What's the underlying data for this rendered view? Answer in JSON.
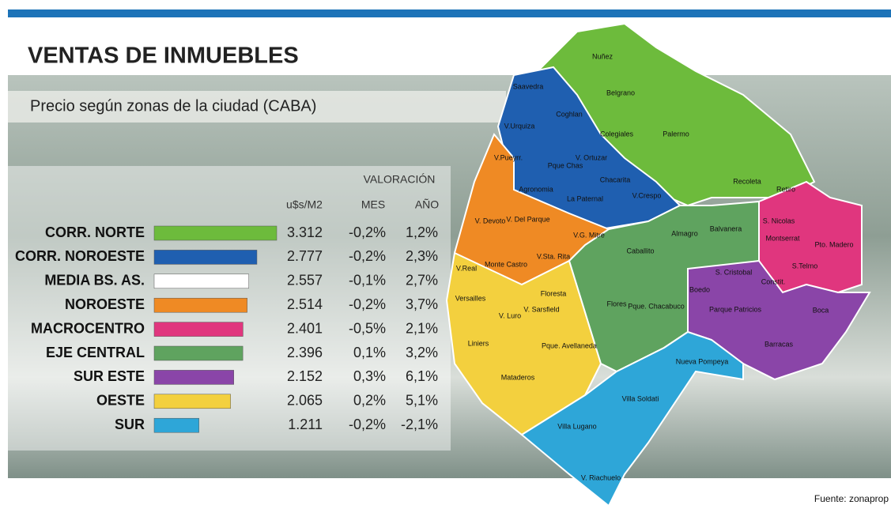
{
  "chart_data": {
    "type": "bar",
    "title": "VENTAS DE INMUEBLES",
    "subtitle": "Precio según zonas de la ciudad (CABA)",
    "headers": {
      "price": "u$s/M2",
      "group": "VALORACIÓN",
      "mes": "MES",
      "anio": "AÑO"
    },
    "categories": [
      "CORR. NORTE",
      "CORR. NOROESTE",
      "MEDIA BS. AS.",
      "NOROESTE",
      "MACROCENTRO",
      "EJE CENTRAL",
      "SUR ESTE",
      "OESTE",
      "SUR"
    ],
    "values": [
      3312,
      2777,
      2557,
      2514,
      2401,
      2396,
      2152,
      2065,
      1211
    ],
    "value_labels": [
      "3.312",
      "2.777",
      "2.557",
      "2.514",
      "2.401",
      "2.396",
      "2.152",
      "2.065",
      "1.211"
    ],
    "colors": [
      "#6dbb3c",
      "#1f5fb0",
      "#ffffff",
      "#ef8a24",
      "#e0367e",
      "#5fa35f",
      "#8a45a8",
      "#f3d03e",
      "#2ea6d8"
    ],
    "mes": {
      "values": [
        -0.2,
        -0.2,
        -0.1,
        -0.2,
        -0.5,
        0.1,
        0.3,
        0.2,
        -0.2
      ],
      "value_labels": [
        "-0,2%",
        "-0,2%",
        "-0,1%",
        "-0,2%",
        "-0,5%",
        "0,1%",
        "0,3%",
        "0,2%",
        "-0,2%"
      ]
    },
    "anio": {
      "values": [
        1.2,
        2.3,
        2.7,
        3.7,
        2.1,
        3.2,
        6.1,
        5.1,
        -2.1
      ],
      "value_labels": [
        "1,2%",
        "2,3%",
        "2,7%",
        "3,7%",
        "2,1%",
        "3,2%",
        "6,1%",
        "5,1%",
        "-2,1%"
      ]
    },
    "map_labels": [
      "Nuñez",
      "Saavedra",
      "Belgrano",
      "Coghlan",
      "Palermo",
      "V.Urquiza",
      "Colegiales",
      "V.Pueyrr.",
      "V. Ortuzar",
      "Pque Chas",
      "Chacarita",
      "Recoleta",
      "Retiro",
      "Agronomia",
      "La Paternal",
      "V.Crespo",
      "V. Devoto",
      "V. Del Parque",
      "S. Nicolas",
      "Almagro",
      "Balvanera",
      "V.G. Mitre",
      "Montserrat",
      "Pto. Madero",
      "Caballito",
      "V.Sta. Rita",
      "Monte Castro",
      "V.Real",
      "S.Telmo",
      "S. Cristobal",
      "Constit.",
      "Versailles",
      "Boedo",
      "Floresta",
      "V. Luro",
      "V. Sarsfield",
      "Flores",
      "Pque. Chacabuco",
      "Parque Patricios",
      "Boca",
      "Liniers",
      "Pque. Avellaneda",
      "Barracas",
      "Nueva Pompeya",
      "Mataderos",
      "Villa Soldati",
      "Villa Lugano",
      "V. Riachuelo"
    ],
    "source": "Fuente: zonaprop"
  }
}
